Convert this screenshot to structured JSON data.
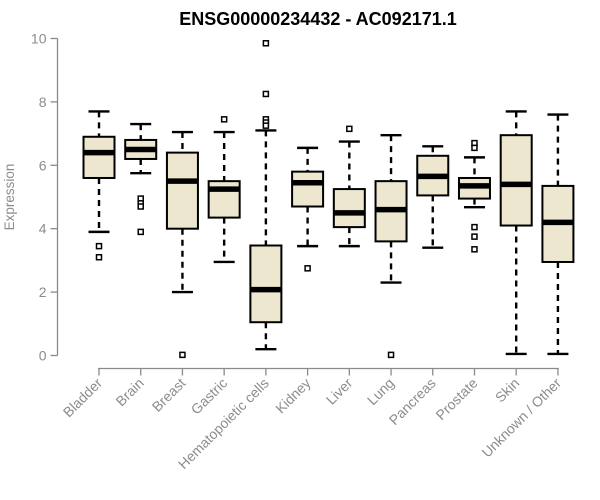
{
  "chart": {
    "title": "ENSG00000234432 - AC092171.1",
    "ylabel": "Expression"
  },
  "chart_data": {
    "type": "boxplot",
    "title": "ENSG00000234432 - AC092171.1",
    "ylabel": "Expression",
    "xlabel": "",
    "ylim": [
      0,
      10
    ],
    "yticks": [
      0,
      2,
      4,
      6,
      8,
      10
    ],
    "grid": false,
    "legend": false,
    "categories": [
      "Bladder",
      "Brain",
      "Breast",
      "Gastric",
      "Hematopoietic cells",
      "Kidney",
      "Liver",
      "Lung",
      "Pancreas",
      "Prostate",
      "Skin",
      "Unknown / Other"
    ],
    "series": [
      {
        "name": "Bladder",
        "whisker_low": 3.9,
        "q1": 5.6,
        "median": 6.4,
        "q3": 6.9,
        "whisker_high": 7.7,
        "outliers": [
          3.45,
          3.1
        ]
      },
      {
        "name": "Brain",
        "whisker_low": 5.75,
        "q1": 6.2,
        "median": 6.5,
        "q3": 6.8,
        "whisker_high": 7.3,
        "outliers": [
          4.95,
          4.8,
          4.7,
          3.9
        ]
      },
      {
        "name": "Breast",
        "whisker_low": 2.0,
        "q1": 4.0,
        "median": 5.5,
        "q3": 6.4,
        "whisker_high": 7.05,
        "outliers": [
          0.02
        ]
      },
      {
        "name": "Gastric",
        "whisker_low": 2.95,
        "q1": 4.35,
        "median": 5.25,
        "q3": 5.5,
        "whisker_high": 7.05,
        "outliers": [
          7.45
        ]
      },
      {
        "name": "Hematopoietic cells",
        "whisker_low": 0.2,
        "q1": 1.05,
        "median": 2.08,
        "q3": 3.47,
        "whisker_high": 7.1,
        "outliers": [
          9.85,
          8.25,
          7.45,
          7.35,
          7.25
        ]
      },
      {
        "name": "Kidney",
        "whisker_low": 3.45,
        "q1": 4.7,
        "median": 5.45,
        "q3": 5.8,
        "whisker_high": 6.55,
        "outliers": [
          2.75
        ]
      },
      {
        "name": "Liver",
        "whisker_low": 3.45,
        "q1": 4.05,
        "median": 4.5,
        "q3": 5.25,
        "whisker_high": 6.75,
        "outliers": [
          7.15
        ]
      },
      {
        "name": "Lung",
        "whisker_low": 2.3,
        "q1": 3.6,
        "median": 4.6,
        "q3": 5.5,
        "whisker_high": 6.95,
        "outliers": [
          0.02
        ]
      },
      {
        "name": "Pancreas",
        "whisker_low": 3.4,
        "q1": 5.05,
        "median": 5.65,
        "q3": 6.3,
        "whisker_high": 6.6,
        "outliers": []
      },
      {
        "name": "Prostate",
        "whisker_low": 4.68,
        "q1": 4.95,
        "median": 5.35,
        "q3": 5.6,
        "whisker_high": 6.25,
        "outliers": [
          6.7,
          6.55,
          4.05,
          3.75,
          3.35
        ]
      },
      {
        "name": "Skin",
        "whisker_low": 0.05,
        "q1": 4.1,
        "median": 5.4,
        "q3": 6.95,
        "whisker_high": 7.7,
        "outliers": []
      },
      {
        "name": "Unknown / Other",
        "whisker_low": 0.05,
        "q1": 2.95,
        "median": 4.2,
        "q3": 5.35,
        "whisker_high": 7.6,
        "outliers": []
      }
    ],
    "colors": {
      "box_fill": "#ECE7CE",
      "box_border": "#000000",
      "median": "#000000",
      "whisker": "#000000",
      "outlier_fill": "#FFFFFF",
      "outlier_stroke": "#000000",
      "axis": "#8A8A8A",
      "tick_label": "#8C8C8C",
      "title": "#000000"
    }
  }
}
